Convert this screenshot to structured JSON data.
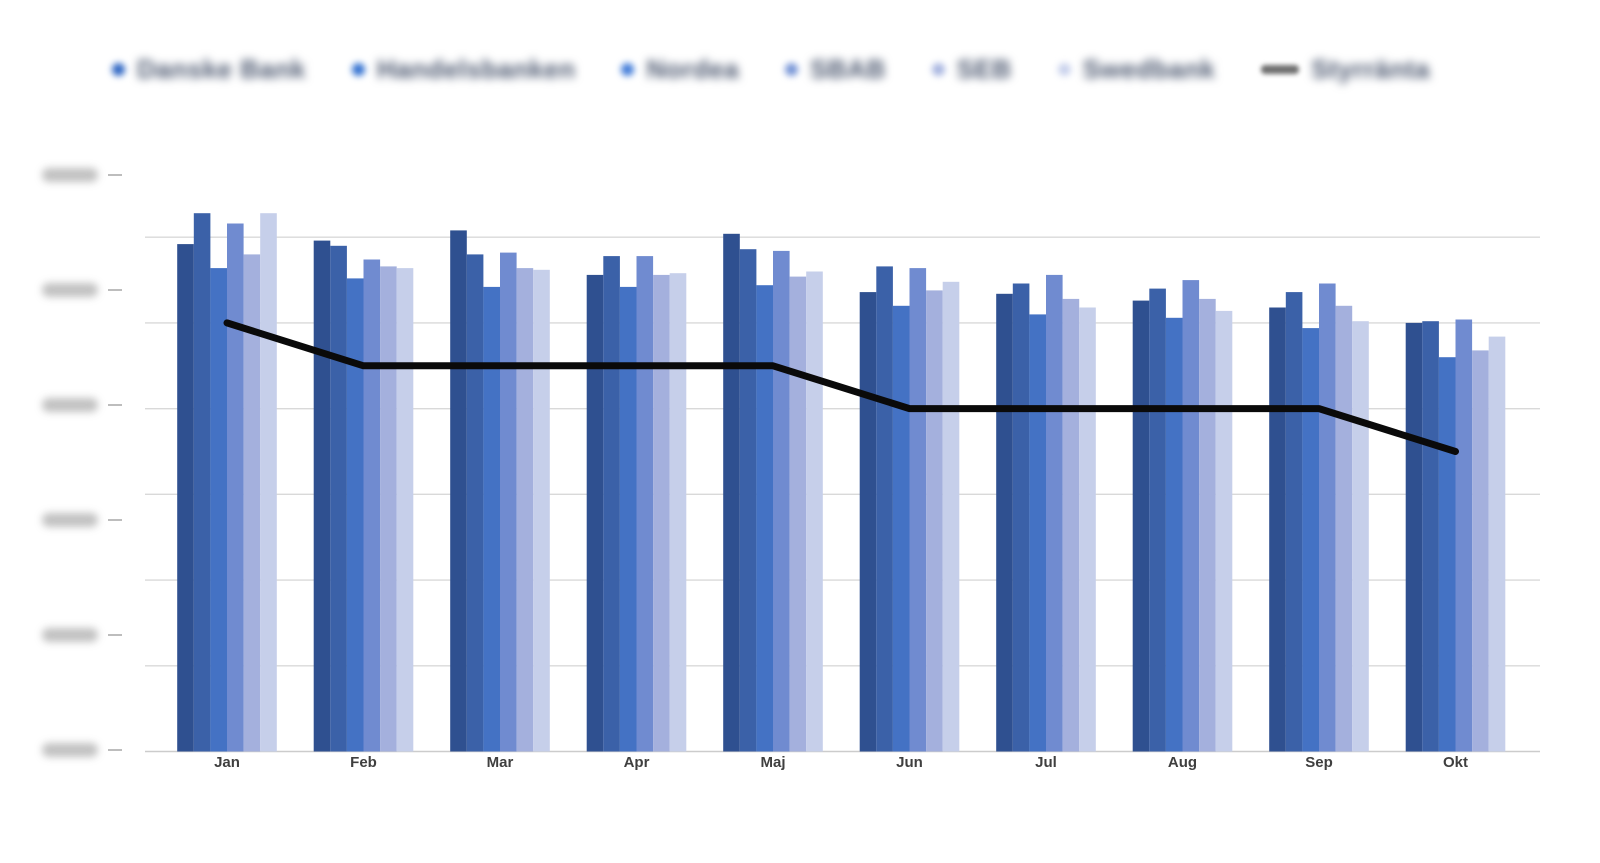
{
  "legend": {
    "items": [
      {
        "label": "Danske Bank",
        "marker": "dot",
        "dot_color": "#2a63c2"
      },
      {
        "label": "Handelsbanken",
        "marker": "dot",
        "dot_color": "#2f6fd0"
      },
      {
        "label": "Nordea",
        "marker": "dot",
        "dot_color": "#3f7ad8"
      },
      {
        "label": "SBAB",
        "marker": "dot",
        "dot_color": "#7493d6"
      },
      {
        "label": "SEB",
        "marker": "dot",
        "dot_color": "#a6b4e0"
      },
      {
        "label": "Swedbank",
        "marker": "dot",
        "dot_color": "#c8d1ec"
      },
      {
        "label": "Styrränta",
        "marker": "dash",
        "dot_color": "#6e6e6e"
      }
    ]
  },
  "y_axis": {
    "tick_labels_legible": false,
    "tick_count": 6
  },
  "x_axis": {
    "labels": [
      "Jan",
      "Feb",
      "Mar",
      "Apr",
      "Maj",
      "Jun",
      "Jul",
      "Aug",
      "Sep",
      "Okt"
    ]
  },
  "chart_data": {
    "type": "bar",
    "subtype": "grouped-bars-with-line-overlay",
    "title": "",
    "xlabel": "",
    "ylabel": "",
    "categories": [
      "Jan",
      "Feb",
      "Mar",
      "Apr",
      "Maj",
      "Jun",
      "Jul",
      "Aug",
      "Sep",
      "Okt"
    ],
    "series": [
      {
        "name": "Danske Bank",
        "color": "#2f5090",
        "values": [
          2.96,
          2.98,
          3.04,
          2.78,
          3.02,
          2.68,
          2.67,
          2.63,
          2.59,
          2.5
        ]
      },
      {
        "name": "Handelsbanken",
        "color": "#3b61a8",
        "values": [
          3.14,
          2.95,
          2.9,
          2.89,
          2.93,
          2.83,
          2.73,
          2.7,
          2.68,
          2.51
        ]
      },
      {
        "name": "Nordea",
        "color": "#4472c4",
        "values": [
          2.82,
          2.76,
          2.71,
          2.71,
          2.72,
          2.6,
          2.55,
          2.53,
          2.47,
          2.3
        ]
      },
      {
        "name": "SBAB",
        "color": "#708bd0",
        "values": [
          3.08,
          2.87,
          2.91,
          2.89,
          2.92,
          2.82,
          2.78,
          2.75,
          2.73,
          2.52
        ]
      },
      {
        "name": "SEB",
        "color": "#a4b0dd",
        "values": [
          2.9,
          2.83,
          2.82,
          2.78,
          2.77,
          2.69,
          2.64,
          2.64,
          2.6,
          2.34
        ]
      },
      {
        "name": "Swedbank",
        "color": "#c6cfea",
        "values": [
          3.14,
          2.82,
          2.81,
          2.79,
          2.8,
          2.74,
          2.59,
          2.57,
          2.51,
          2.42
        ]
      }
    ],
    "line_series": {
      "name": "Styrränta",
      "color": "#0a0a0a",
      "values": [
        2.5,
        2.25,
        2.25,
        2.25,
        2.25,
        2.0,
        2.0,
        2.0,
        2.0,
        1.75
      ]
    },
    "ylim": [
      0,
      3.5
    ],
    "gridline_step_pct": 0.5,
    "grid": true,
    "y_tick_labels": "blurred-illegible",
    "legend_position": "top"
  }
}
